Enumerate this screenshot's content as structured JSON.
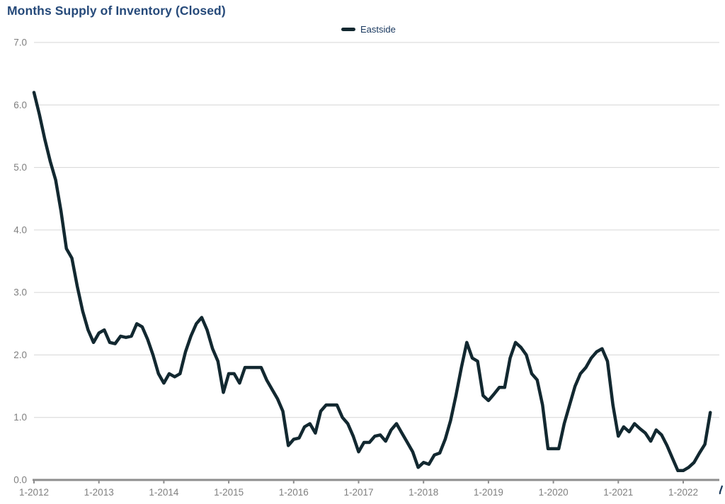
{
  "header": {
    "title": "Months Supply of Inventory (Closed)",
    "title_color": "#264a7a"
  },
  "legend": {
    "label": "Eastside",
    "swatch_color": "#122830",
    "text_color": "#17365d",
    "position": "top-center"
  },
  "chart_data": {
    "type": "line",
    "title": "Months Supply of Inventory (Closed)",
    "frequency": "monthly",
    "x_tick_labels": [
      "1-2012",
      "1-2013",
      "1-2014",
      "1-2015",
      "1-2016",
      "1-2017",
      "1-2018",
      "1-2019",
      "1-2020",
      "1-2021",
      "1-2022"
    ],
    "y_tick_labels": [
      "0.0",
      "1.0",
      "2.0",
      "3.0",
      "4.0",
      "5.0",
      "6.0",
      "7.0"
    ],
    "y_ticks": [
      0,
      1,
      2,
      3,
      4,
      5,
      6,
      7
    ],
    "ylim": [
      0,
      7
    ],
    "grid": true,
    "legend_position": "top-center",
    "grid_color": "#d6d6d6",
    "axis_color": "#8e8e8e",
    "tick_label_color": "#7f7f7f",
    "series": [
      {
        "name": "Eastside",
        "color": "#122830",
        "start": "1-2012",
        "end": "6-2022",
        "values": [
          6.2,
          5.85,
          5.45,
          5.1,
          4.8,
          4.3,
          3.7,
          3.55,
          3.1,
          2.7,
          2.4,
          2.2,
          2.35,
          2.4,
          2.2,
          2.18,
          2.3,
          2.28,
          2.3,
          2.5,
          2.45,
          2.25,
          2.0,
          1.7,
          1.55,
          1.7,
          1.65,
          1.7,
          2.05,
          2.3,
          2.5,
          2.6,
          2.4,
          2.1,
          1.9,
          1.4,
          1.7,
          1.7,
          1.55,
          1.8,
          1.8,
          1.8,
          1.8,
          1.6,
          1.45,
          1.3,
          1.1,
          0.55,
          0.65,
          0.67,
          0.85,
          0.9,
          0.75,
          1.1,
          1.2,
          1.2,
          1.2,
          1.0,
          0.9,
          0.7,
          0.45,
          0.6,
          0.6,
          0.7,
          0.72,
          0.62,
          0.8,
          0.9,
          0.75,
          0.6,
          0.45,
          0.2,
          0.28,
          0.25,
          0.4,
          0.43,
          0.65,
          0.95,
          1.35,
          1.8,
          2.2,
          1.95,
          1.9,
          1.35,
          1.27,
          1.37,
          1.48,
          1.48,
          1.95,
          2.2,
          2.12,
          2.0,
          1.7,
          1.6,
          1.2,
          0.5,
          0.5,
          0.5,
          0.9,
          1.2,
          1.5,
          1.7,
          1.8,
          1.95,
          2.05,
          2.1,
          1.9,
          1.2,
          0.7,
          0.85,
          0.77,
          0.9,
          0.82,
          0.75,
          0.62,
          0.8,
          0.72,
          0.55,
          0.35,
          0.15,
          0.15,
          0.2,
          0.28,
          0.43,
          0.57,
          1.08
        ]
      }
    ]
  }
}
